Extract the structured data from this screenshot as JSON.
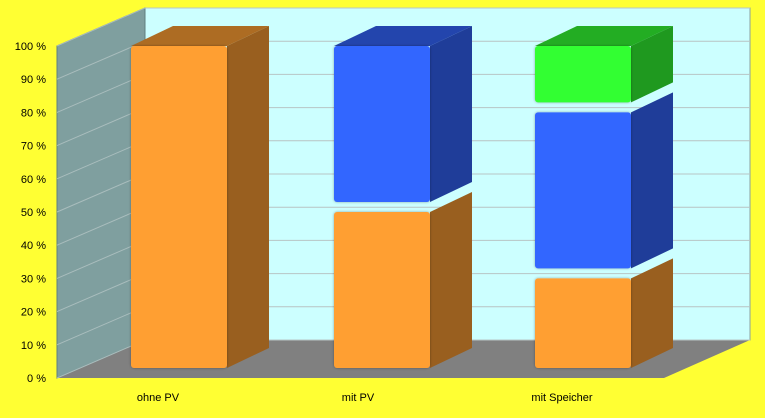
{
  "chart_data": {
    "type": "bar",
    "stacked": true,
    "three_d": true,
    "categories": [
      "ohne PV",
      "mit PV",
      "mit Speicher"
    ],
    "series": [
      {
        "color": "#ff9f33",
        "values": [
          100,
          50,
          30
        ]
      },
      {
        "color": "#3366ff",
        "values": [
          0,
          50,
          50
        ]
      },
      {
        "color": "#33ff33",
        "values": [
          0,
          0,
          20
        ]
      }
    ],
    "y_ticks": [
      "0 %",
      "10 %",
      "20 %",
      "30 %",
      "40 %",
      "50 %",
      "60 %",
      "70 %",
      "80 %",
      "90 %",
      "100 %"
    ],
    "ylim": [
      0,
      100
    ],
    "grid": true,
    "colors": {
      "background": "#ffff33",
      "back_wall": "#ccffff",
      "side_wall": "#7f9f9f",
      "floor": "#808080",
      "grid": "#b8c4c4"
    }
  }
}
